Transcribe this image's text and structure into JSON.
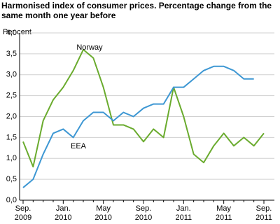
{
  "chart_data": {
    "type": "line",
    "title": "Harmonised index of consumer prices. Percentage change from the same month one year before",
    "ylabel": "Per cent",
    "categories": [
      "Sep.\n2009",
      null,
      null,
      null,
      "Jan.\n2010",
      null,
      null,
      null,
      "May\n2010",
      null,
      null,
      null,
      "Sep.\n2010",
      null,
      null,
      null,
      "Jan.\n2011",
      null,
      null,
      null,
      "May\n2011",
      null,
      null,
      null,
      "Sep.\n2011"
    ],
    "series": [
      {
        "name": "Norway",
        "color": "#6aab2e",
        "values": [
          1.4,
          0.8,
          1.9,
          2.4,
          2.7,
          3.1,
          3.6,
          3.4,
          2.7,
          1.8,
          1.8,
          1.7,
          1.4,
          1.7,
          1.5,
          2.7,
          2.0,
          1.1,
          0.9,
          1.3,
          1.6,
          1.3,
          1.5,
          1.3,
          1.6
        ]
      },
      {
        "name": "EEA",
        "color": "#3d97d3",
        "values": [
          0.3,
          0.5,
          1.1,
          1.6,
          1.7,
          1.5,
          1.9,
          2.1,
          2.1,
          1.9,
          2.1,
          2.0,
          2.2,
          2.3,
          2.3,
          2.7,
          2.7,
          2.9,
          3.1,
          3.2,
          3.2,
          3.1,
          2.9,
          2.9,
          null
        ]
      }
    ],
    "ylim": [
      0,
      4
    ],
    "yticks": [
      {
        "value": 0,
        "label": "0,0"
      },
      {
        "value": 0.5,
        "label": "0,5"
      },
      {
        "value": 1,
        "label": "1,0"
      },
      {
        "value": 1.5,
        "label": "1,5"
      },
      {
        "value": 2,
        "label": "2,0"
      },
      {
        "value": 2.5,
        "label": "2,5"
      },
      {
        "value": 3,
        "label": "3,0"
      },
      {
        "value": 3.5,
        "label": "3,5"
      },
      {
        "value": 4,
        "label": "4,0"
      }
    ],
    "grid": true
  }
}
